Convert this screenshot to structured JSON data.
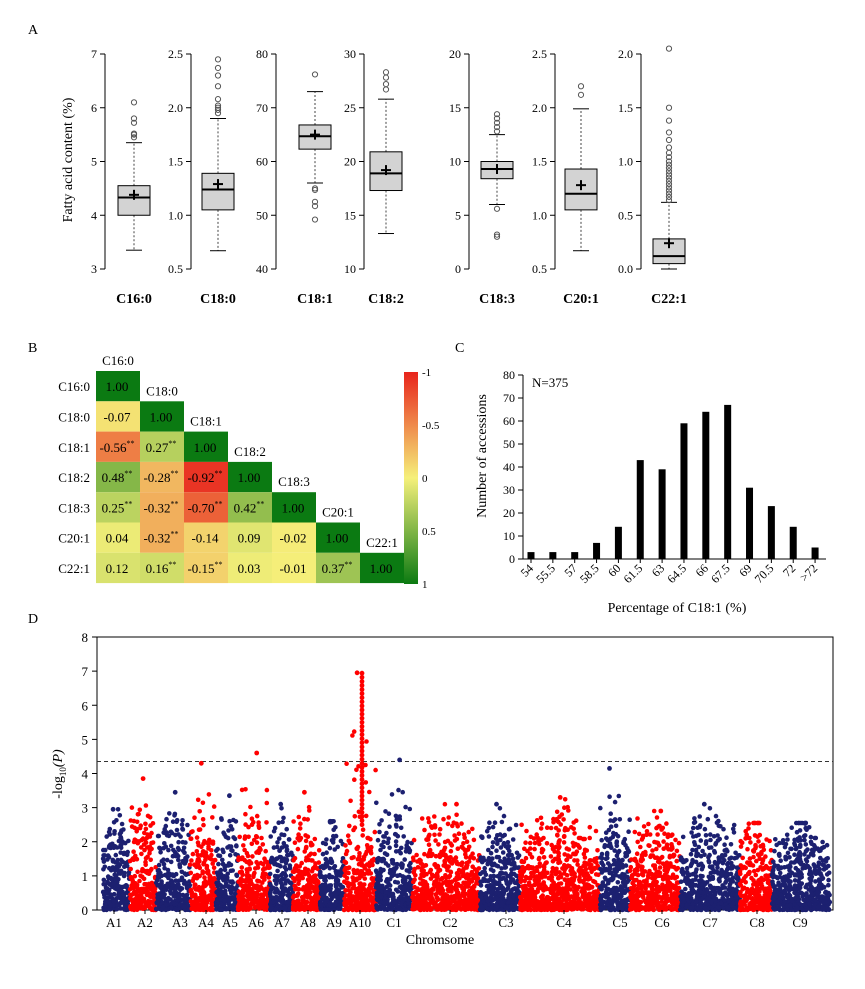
{
  "panels": {
    "a": "A",
    "b": "B",
    "c": "C",
    "d": "D"
  },
  "chart_data": [
    {
      "type": "box",
      "ylabel": "Fatty acid content (%)",
      "boxes": [
        {
          "name": "C16:0",
          "ylim": [
            3,
            7
          ],
          "ticks": [
            "3",
            "4",
            "5",
            "6",
            "7"
          ],
          "q1": 4.0,
          "median": 4.33,
          "q3": 4.55,
          "mean": 4.38,
          "whisker_low": 3.35,
          "whisker_high": 5.35,
          "outliers": [
            5.45,
            5.5,
            5.52,
            5.72,
            5.8,
            6.1
          ]
        },
        {
          "name": "C18:0",
          "ylim": [
            0.5,
            2.5
          ],
          "ticks": [
            "0.5",
            "1.0",
            "1.5",
            "2.0",
            "2.5"
          ],
          "q1": 1.05,
          "median": 1.24,
          "q3": 1.39,
          "mean": 1.29,
          "whisker_low": 0.67,
          "whisker_high": 1.9,
          "outliers": [
            1.95,
            1.98,
            2.0,
            2.02,
            2.08,
            2.2,
            2.3,
            2.37,
            2.45
          ]
        },
        {
          "name": "C18:1",
          "ylim": [
            40,
            80
          ],
          "ticks": [
            "40",
            "50",
            "60",
            "70",
            "80"
          ],
          "q1": 62.3,
          "median": 64.7,
          "q3": 66.8,
          "mean": 65.0,
          "whisker_low": 56.0,
          "whisker_high": 73.0,
          "outliers": [
            55.0,
            54.7,
            52.5,
            51.7,
            49.2,
            76.2
          ]
        },
        {
          "name": "C18:2",
          "ylim": [
            10,
            30
          ],
          "ticks": [
            "10",
            "15",
            "20",
            "25",
            "30"
          ],
          "q1": 17.3,
          "median": 18.9,
          "q3": 20.9,
          "mean": 19.2,
          "whisker_low": 13.3,
          "whisker_high": 25.8,
          "outliers": [
            26.7,
            27.2,
            27.8,
            28.3
          ]
        },
        {
          "name": "C18:3",
          "ylim": [
            0,
            20
          ],
          "ticks": [
            "0",
            "5",
            "10",
            "15",
            "20"
          ],
          "q1": 8.4,
          "median": 9.3,
          "q3": 10.0,
          "mean": 9.3,
          "whisker_low": 6.0,
          "whisker_high": 12.5,
          "outliers": [
            5.6,
            3.2,
            3.0,
            12.8,
            13.2,
            13.6,
            14.0,
            14.4
          ]
        },
        {
          "name": "C20:1",
          "ylim": [
            0.5,
            2.5
          ],
          "ticks": [
            "0.5",
            "1.0",
            "1.5",
            "2.0",
            "2.5"
          ],
          "q1": 1.05,
          "median": 1.2,
          "q3": 1.43,
          "mean": 1.28,
          "whisker_low": 0.67,
          "whisker_high": 1.99,
          "outliers": [
            2.12,
            2.2
          ]
        },
        {
          "name": "C22:1",
          "ylim": [
            0,
            2.0
          ],
          "ticks": [
            "0.0",
            "0.5",
            "1.0",
            "1.5",
            "2.0"
          ],
          "q1": 0.05,
          "median": 0.12,
          "q3": 0.28,
          "mean": 0.24,
          "whisker_low": 0.0,
          "whisker_high": 0.62,
          "outliers": [
            0.64,
            0.67,
            0.7,
            0.73,
            0.76,
            0.79,
            0.82,
            0.85,
            0.88,
            0.91,
            0.94,
            0.97,
            1.0,
            1.04,
            1.08,
            1.13,
            1.2,
            1.27,
            1.38,
            1.5,
            2.05
          ]
        }
      ]
    },
    {
      "type": "heatmap",
      "labels": [
        "C16:0",
        "C18:0",
        "C18:1",
        "C18:2",
        "C18:3",
        "C20:1",
        "C22:1"
      ],
      "matrix": [
        [
          "1.00"
        ],
        [
          "-0.07",
          "1.00"
        ],
        [
          "-0.56",
          "0.27",
          "1.00"
        ],
        [
          "0.48",
          "-0.28",
          "-0.92",
          "1.00"
        ],
        [
          "0.25",
          "-0.32",
          "-0.70",
          "0.42",
          "1.00"
        ],
        [
          "0.04",
          "-0.32",
          "-0.14",
          "0.09",
          "-0.02",
          "1.00"
        ],
        [
          "0.12",
          "0.16",
          "-0.15",
          "0.03",
          "-0.01",
          "0.37",
          "1.00"
        ]
      ],
      "significance": [
        [
          ""
        ],
        [
          "",
          ""
        ],
        [
          "**",
          "**",
          ""
        ],
        [
          "**",
          "**",
          "**",
          ""
        ],
        [
          "**",
          "**",
          "**",
          "**",
          ""
        ],
        [
          "",
          "**",
          "",
          "",
          "",
          ""
        ],
        [
          "",
          "**",
          "**",
          "",
          "",
          "**",
          ""
        ]
      ],
      "colorbar_ticks": [
        "-1",
        "-0.5",
        "0",
        "0.5",
        "1"
      ],
      "colors": {
        "neg": "#e8241c",
        "mid": "#f5f07a",
        "pos": "#0b7a12"
      }
    },
    {
      "type": "bar",
      "annotation": "N=375",
      "xlabel": "Percentage of C18:1 (%)",
      "ylabel": "Number of accessions",
      "ylim": [
        0,
        80
      ],
      "yticks": [
        "0",
        "10",
        "20",
        "30",
        "40",
        "50",
        "60",
        "70",
        "80"
      ],
      "categories": [
        "54",
        "55.5",
        "57",
        "58.5",
        "60",
        "61.5",
        "63",
        "64.5",
        "66",
        "67.5",
        "69",
        "70.5",
        "72",
        ">72"
      ],
      "values": [
        3,
        3,
        3,
        7,
        14,
        43,
        39,
        59,
        64,
        67,
        31,
        23,
        14,
        5
      ]
    },
    {
      "type": "scatter",
      "xlabel": "Chromsome",
      "ylabel_main": "-log",
      "ylabel_sub": "10",
      "ylabel_tail": "(P)",
      "ylim": [
        0,
        8
      ],
      "yticks": [
        "0",
        "1",
        "2",
        "3",
        "4",
        "5",
        "6",
        "7",
        "8"
      ],
      "threshold": 4.35,
      "colors": {
        "navy": "#1c2070",
        "red": "#ff0000"
      },
      "chromosomes": [
        {
          "name": "A1",
          "max": 2.95
        },
        {
          "name": "A2",
          "max": 3.85
        },
        {
          "name": "A3",
          "max": 3.45
        },
        {
          "name": "A4",
          "max": 4.3
        },
        {
          "name": "A5",
          "max": 3.35
        },
        {
          "name": "A6",
          "max": 4.6
        },
        {
          "name": "A7",
          "max": 3.1
        },
        {
          "name": "A8",
          "max": 3.45
        },
        {
          "name": "A9",
          "max": 2.6
        },
        {
          "name": "A10",
          "max": 6.95
        },
        {
          "name": "C1",
          "max": 4.4
        },
        {
          "name": "C2",
          "max": 3.1
        },
        {
          "name": "C3",
          "max": 3.1
        },
        {
          "name": "C4",
          "max": 3.3
        },
        {
          "name": "C5",
          "max": 4.15
        },
        {
          "name": "C6",
          "max": 2.9
        },
        {
          "name": "C7",
          "max": 3.1
        },
        {
          "name": "C8",
          "max": 2.55
        },
        {
          "name": "C9",
          "max": 2.55
        }
      ]
    }
  ]
}
